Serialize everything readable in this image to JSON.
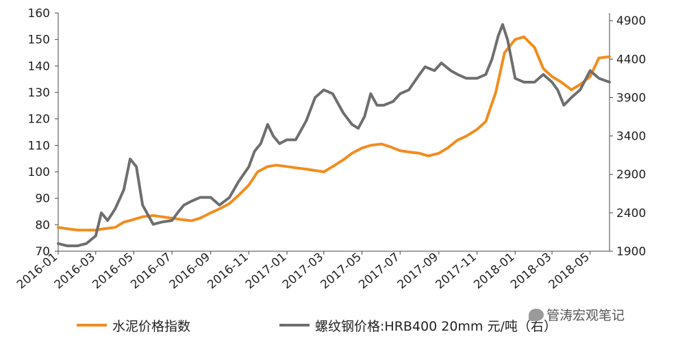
{
  "chart_data": {
    "type": "line",
    "title": "",
    "xlabel": "",
    "ylabel": "",
    "ylim": [
      70,
      160
    ],
    "y2lim": [
      1900,
      5000
    ],
    "y_ticks": [
      "70",
      "80",
      "90",
      "100",
      "110",
      "120",
      "130",
      "140",
      "150",
      "160"
    ],
    "y2_ticks": [
      "1900",
      "2400",
      "2900",
      "3400",
      "3900",
      "4400",
      "4900"
    ],
    "x_ticks": [
      "2016-01",
      "2016-03",
      "2016-05",
      "2016-07",
      "2016-09",
      "2016-11",
      "2017-01",
      "2017-03",
      "2017-05",
      "2017-07",
      "2017-09",
      "2017-11",
      "2018-01",
      "2018-03",
      "2018-05"
    ],
    "grid": false,
    "legend_position": "bottom",
    "series": [
      {
        "name": "水泥价格指数",
        "axis": "left",
        "color": "#F28C1E",
        "x": [
          "2016-01-01",
          "2016-01-15",
          "2016-02-01",
          "2016-02-15",
          "2016-03-01",
          "2016-03-15",
          "2016-04-01",
          "2016-04-15",
          "2016-05-01",
          "2016-05-15",
          "2016-06-01",
          "2016-06-15",
          "2016-07-01",
          "2016-07-15",
          "2016-08-01",
          "2016-08-15",
          "2016-09-01",
          "2016-09-15",
          "2016-10-01",
          "2016-10-15",
          "2016-11-01",
          "2016-11-15",
          "2016-12-01",
          "2016-12-15",
          "2017-01-01",
          "2017-01-15",
          "2017-02-01",
          "2017-02-15",
          "2017-03-01",
          "2017-03-15",
          "2017-04-01",
          "2017-04-15",
          "2017-05-01",
          "2017-05-15",
          "2017-06-01",
          "2017-06-15",
          "2017-07-01",
          "2017-07-15",
          "2017-08-01",
          "2017-08-15",
          "2017-09-01",
          "2017-09-15",
          "2017-10-01",
          "2017-10-15",
          "2017-11-01",
          "2017-11-15",
          "2017-12-01",
          "2017-12-15",
          "2018-01-01",
          "2018-01-15",
          "2018-02-01",
          "2018-02-15",
          "2018-03-01",
          "2018-03-15",
          "2018-04-01",
          "2018-04-15",
          "2018-05-01",
          "2018-05-15",
          "2018-06-01"
        ],
        "values": [
          79,
          78.5,
          78,
          78,
          78,
          78.5,
          79,
          81,
          82,
          83,
          83.5,
          83,
          82.5,
          82,
          81.5,
          82.5,
          84.5,
          86,
          88,
          91,
          95,
          100,
          102,
          102.5,
          102,
          101.5,
          101,
          100.5,
          100,
          102,
          104.5,
          107,
          109,
          110,
          110.5,
          109.5,
          108,
          107.5,
          107,
          106,
          107,
          109,
          112,
          113.5,
          116,
          119,
          130,
          145,
          150,
          151,
          147,
          139,
          136,
          134,
          131,
          133,
          136,
          143,
          143.5
        ]
      },
      {
        "name": "螺纹钢价格:HRB400 20mm 元/吨（右）",
        "axis": "right",
        "color": "#6E6E6E",
        "x": [
          "2016-01-01",
          "2016-01-15",
          "2016-02-01",
          "2016-02-15",
          "2016-03-01",
          "2016-03-10",
          "2016-03-20",
          "2016-04-01",
          "2016-04-15",
          "2016-04-25",
          "2016-05-05",
          "2016-05-15",
          "2016-06-01",
          "2016-06-15",
          "2016-07-01",
          "2016-07-10",
          "2016-07-20",
          "2016-08-01",
          "2016-08-15",
          "2016-09-01",
          "2016-09-15",
          "2016-10-01",
          "2016-10-15",
          "2016-11-01",
          "2016-11-10",
          "2016-11-20",
          "2016-12-01",
          "2016-12-10",
          "2016-12-20",
          "2017-01-01",
          "2017-01-15",
          "2017-02-01",
          "2017-02-15",
          "2017-03-01",
          "2017-03-15",
          "2017-04-01",
          "2017-04-15",
          "2017-04-25",
          "2017-05-05",
          "2017-05-15",
          "2017-05-25",
          "2017-06-05",
          "2017-06-20",
          "2017-07-01",
          "2017-07-15",
          "2017-08-01",
          "2017-08-10",
          "2017-08-25",
          "2017-09-05",
          "2017-09-20",
          "2017-10-01",
          "2017-10-15",
          "2017-11-01",
          "2017-11-15",
          "2017-11-25",
          "2017-12-05",
          "2017-12-12",
          "2017-12-20",
          "2018-01-01",
          "2018-01-15",
          "2018-02-01",
          "2018-02-15",
          "2018-03-01",
          "2018-03-10",
          "2018-03-20",
          "2018-04-01",
          "2018-04-15",
          "2018-05-01",
          "2018-05-15",
          "2018-06-01"
        ],
        "values": [
          2000,
          1970,
          1970,
          2000,
          2100,
          2400,
          2300,
          2450,
          2700,
          3100,
          3000,
          2500,
          2250,
          2280,
          2300,
          2400,
          2500,
          2550,
          2600,
          2600,
          2500,
          2600,
          2800,
          3000,
          3200,
          3300,
          3550,
          3400,
          3300,
          3350,
          3350,
          3600,
          3900,
          4000,
          3950,
          3700,
          3550,
          3500,
          3650,
          3950,
          3800,
          3800,
          3850,
          3950,
          4000,
          4200,
          4300,
          4250,
          4350,
          4250,
          4200,
          4150,
          4150,
          4200,
          4400,
          4700,
          4850,
          4650,
          4150,
          4100,
          4100,
          4200,
          4100,
          4000,
          3800,
          3900,
          4000,
          4250,
          4150,
          4100
        ]
      }
    ]
  },
  "legend": {
    "label_1": "水泥价格指数",
    "label_2": "螺纹钢价格:HRB400 20mm 元/吨（右）"
  },
  "watermark": {
    "text": "管涛宏观笔记"
  }
}
